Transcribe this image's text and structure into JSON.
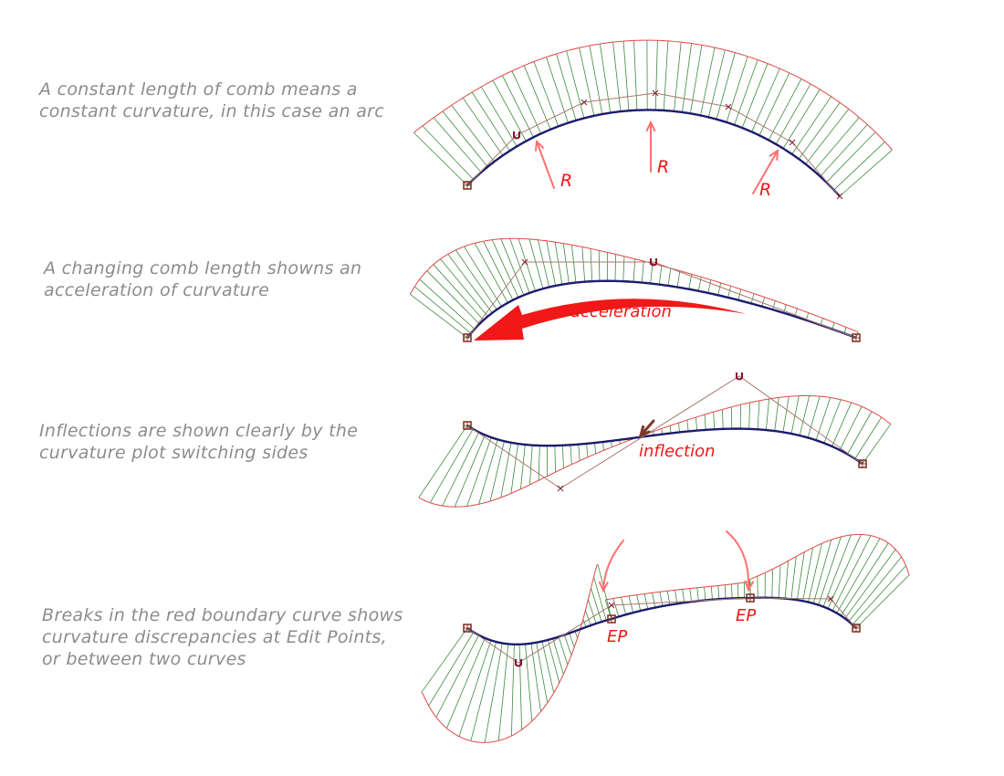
{
  "colors": {
    "curve": "#1c1c6e",
    "comb_teeth": "#3d8a3d",
    "comb_boundary": "#e04848",
    "control_polygon": "#a87a70",
    "annotation": "#f01818",
    "annotation_arrow": "#ff7070",
    "caption_text": "#8c8c8c"
  },
  "panels": [
    {
      "caption_lines": [
        "A constant length of comb means a",
        "constant curvature, in this case an arc"
      ],
      "annotations": [
        "R",
        "R",
        "R"
      ]
    },
    {
      "caption_lines": [
        "A changing comb length showns an",
        "acceleration of curvature"
      ],
      "annotations": [
        "acceleration"
      ]
    },
    {
      "caption_lines": [
        "Inflections are shown clearly by the",
        "curvature plot switching sides"
      ],
      "annotations": [
        "inflection"
      ]
    },
    {
      "caption_lines": [
        "Breaks in the red boundary curve shows",
        "curvature discrepancies at Edit Points,",
        "or between two curves"
      ],
      "annotations": [
        "EP",
        "EP"
      ]
    }
  ]
}
